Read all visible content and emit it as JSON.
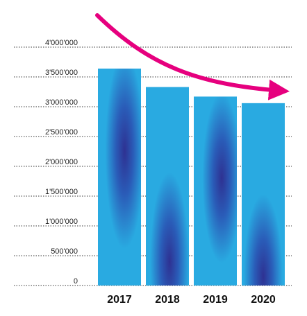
{
  "chart_data": {
    "type": "bar",
    "categories": [
      "2017",
      "2018",
      "2019",
      "2020"
    ],
    "values": [
      3640000,
      3330000,
      3170000,
      3060000
    ],
    "ylim": [
      0,
      4000000
    ],
    "y_ticks": [
      0,
      500000,
      1000000,
      1500000,
      2000000,
      2500000,
      3000000,
      3500000,
      4000000
    ],
    "y_tick_labels": [
      "0",
      "500'000",
      "1'000'000",
      "1'500'000",
      "2'000'000",
      "2'500'000",
      "3'000'000",
      "3'500'000",
      "4'000'000"
    ],
    "grid": true,
    "annotation": "downward-trend-arrow",
    "colors": {
      "bar": "#29aae1",
      "bar_dark": "#2e3192",
      "arrow": "#e6007e",
      "grid": "#333333"
    }
  }
}
